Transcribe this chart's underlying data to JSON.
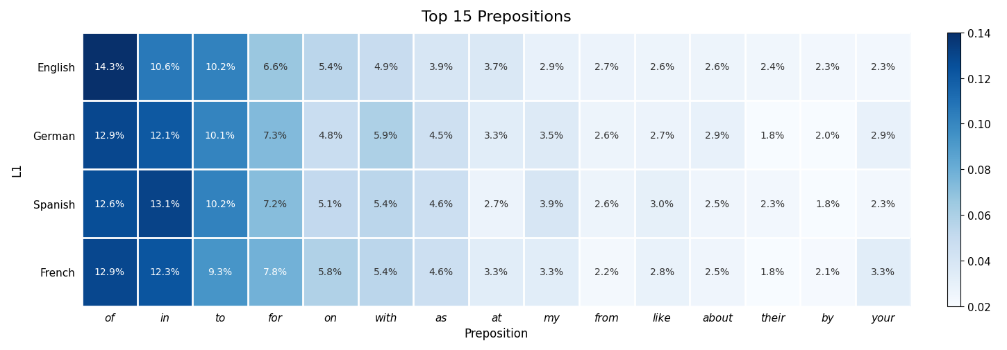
{
  "title": "Top 15 Prepositions",
  "xlabel": "Preposition",
  "ylabel": "L1",
  "rows": [
    "English",
    "German",
    "Spanish",
    "French"
  ],
  "cols": [
    "of",
    "in",
    "to",
    "for",
    "on",
    "with",
    "as",
    "at",
    "my",
    "from",
    "like",
    "about",
    "their",
    "by",
    "your"
  ],
  "values": [
    [
      14.3,
      10.6,
      10.2,
      6.6,
      5.4,
      4.9,
      3.9,
      3.7,
      2.9,
      2.7,
      2.6,
      2.6,
      2.4,
      2.3,
      2.3
    ],
    [
      12.9,
      12.1,
      10.1,
      7.3,
      4.8,
      5.9,
      4.5,
      3.3,
      3.5,
      2.6,
      2.7,
      2.9,
      1.8,
      2.0,
      2.9
    ],
    [
      12.6,
      13.1,
      10.2,
      7.2,
      5.1,
      5.4,
      4.6,
      2.7,
      3.9,
      2.6,
      3.0,
      2.5,
      2.3,
      1.8,
      2.3
    ],
    [
      12.9,
      12.3,
      9.3,
      7.8,
      5.8,
      5.4,
      4.6,
      3.3,
      3.3,
      2.2,
      2.8,
      2.5,
      1.8,
      2.1,
      3.3
    ]
  ],
  "vmin": 0.02,
  "vmax": 0.14,
  "cmap": "Blues",
  "colorbar_ticks": [
    0.02,
    0.04,
    0.06,
    0.08,
    0.1,
    0.12,
    0.14
  ],
  "colorbar_ticklabels": [
    "0.02",
    "0.04",
    "0.06",
    "0.08",
    "0.10",
    "0.12",
    "0.14"
  ],
  "title_fontsize": 16,
  "label_fontsize": 12,
  "tick_fontsize": 11,
  "annot_fontsize": 10,
  "figsize": [
    14.5,
    5.06
  ]
}
